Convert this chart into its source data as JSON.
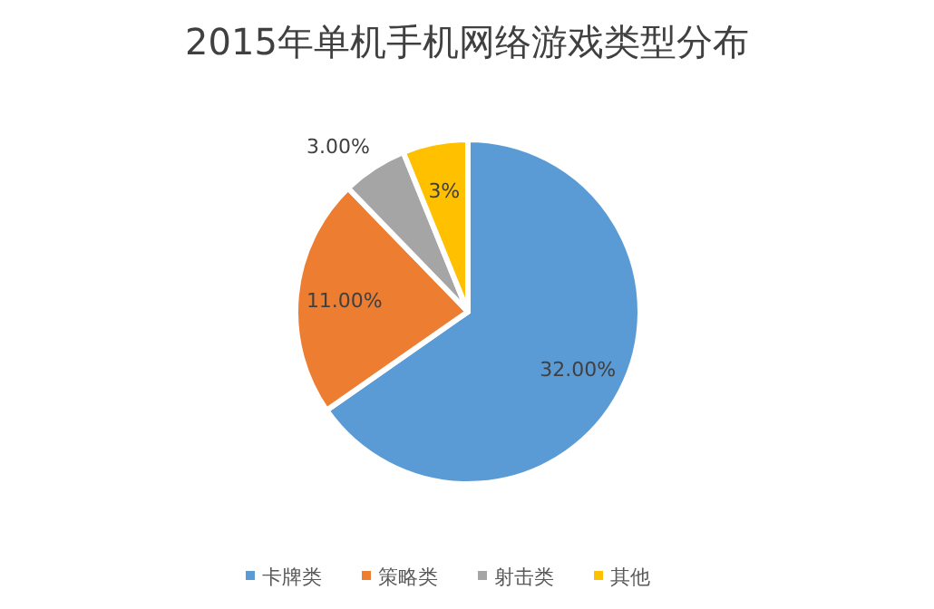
{
  "chart_data": {
    "type": "pie",
    "title": "2015年单机手机网络游戏类型分布",
    "categories": [
      "卡牌类",
      "策略类",
      "射击类",
      "其他"
    ],
    "values": [
      32,
      11,
      3,
      3
    ],
    "value_labels": [
      "32.00%",
      "11.00%",
      "3.00%",
      "3%"
    ],
    "colors": [
      "#5b9bd5",
      "#ed7d31",
      "#a5a5a5",
      "#ffc000"
    ],
    "legend": "bottom"
  }
}
